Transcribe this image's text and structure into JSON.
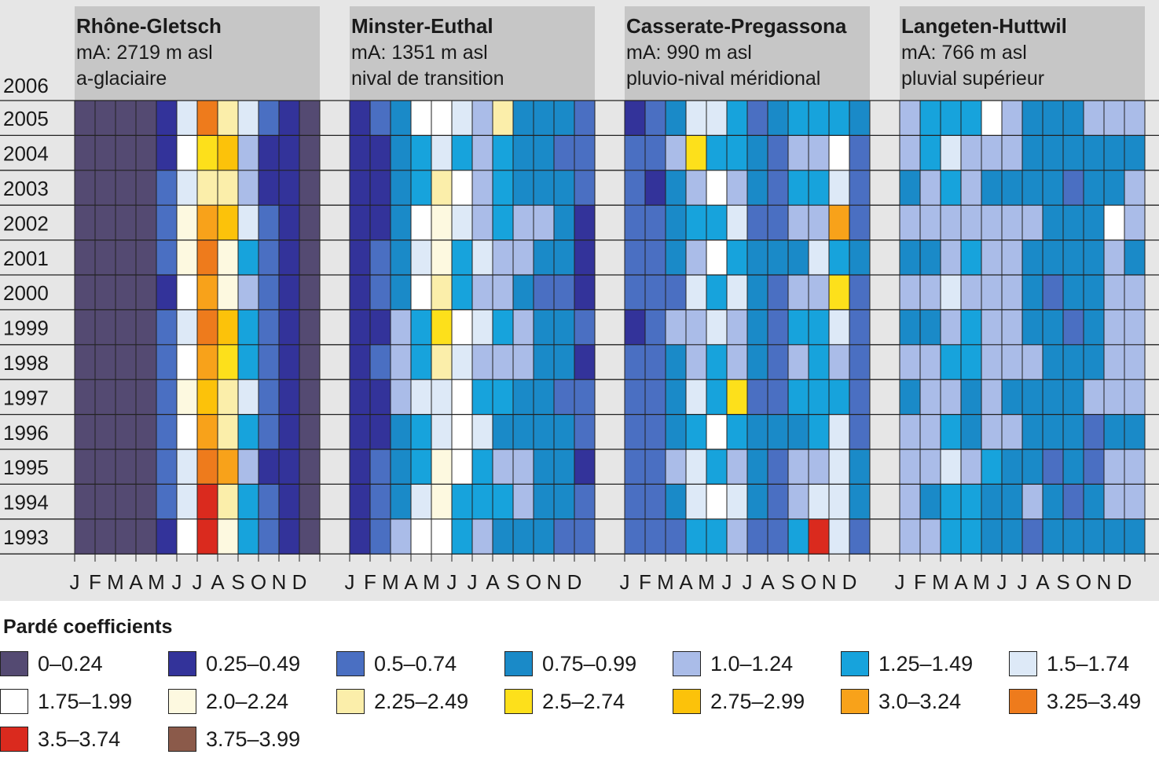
{
  "chart_data": {
    "type": "heatmap",
    "legend_title": "Pardé coefficients",
    "years": [
      "2006",
      "2005",
      "2004",
      "2003",
      "2002",
      "2001",
      "2000",
      "1999",
      "1998",
      "1997",
      "1996",
      "1995",
      "1994",
      "1993"
    ],
    "months": [
      "J",
      "F",
      "M",
      "A",
      "M",
      "J",
      "J",
      "A",
      "S",
      "O",
      "N",
      "D"
    ],
    "legend": [
      {
        "label": "0–0.24",
        "color": "#544a72"
      },
      {
        "label": "0.25–0.49",
        "color": "#33339a"
      },
      {
        "label": "0.5–0.74",
        "color": "#4a6fc2"
      },
      {
        "label": "0.75–0.99",
        "color": "#1a8ac8"
      },
      {
        "label": "1.0–1.24",
        "color": "#aabce8"
      },
      {
        "label": "1.25–1.49",
        "color": "#17a3dc"
      },
      {
        "label": "1.5–1.74",
        "color": "#dde9f7"
      },
      {
        "label": "1.75–1.99",
        "color": "#ffffff"
      },
      {
        "label": "2.0–2.24",
        "color": "#fdf9e0"
      },
      {
        "label": "2.25–2.49",
        "color": "#fbeeaa"
      },
      {
        "label": "2.5–2.74",
        "color": "#fde01b"
      },
      {
        "label": "2.75–2.99",
        "color": "#fcc20a"
      },
      {
        "label": "3.0–3.24",
        "color": "#f8a21a"
      },
      {
        "label": "3.25–3.49",
        "color": "#ee7b1c"
      },
      {
        "label": "3.5–3.74",
        "color": "#da2a1e"
      },
      {
        "label": "3.75–3.99",
        "color": "#8b5a4a"
      }
    ],
    "stations": [
      {
        "name": "Rhône-Gletsch",
        "altitude": "mA: 2719 m asl",
        "regime": "a-glaciaire",
        "monthly_coefficients": [
          0.1,
          0.1,
          0.1,
          0.2,
          0.5,
          1.8,
          2.9,
          2.6,
          1.3,
          0.5,
          0.3,
          0.2
        ],
        "peak_events": [
          {
            "year": "1994",
            "month": "J",
            "value": 3.6
          },
          {
            "year": "1995",
            "month": "J",
            "value": 3.4
          },
          {
            "year": "2005",
            "month": "J",
            "value": 3.3
          },
          {
            "year": "2000",
            "month": "J",
            "value": 3.1
          }
        ]
      },
      {
        "name": "Minster-Euthal",
        "altitude": "mA: 1351 m asl",
        "regime": "nival de transition",
        "monthly_coefficients": [
          0.4,
          0.5,
          0.9,
          1.6,
          1.9,
          1.5,
          1.3,
          1.2,
          1.0,
          0.9,
          0.8,
          0.5
        ],
        "peak_events": [
          {
            "year": "1999",
            "month": "M",
            "value": 2.7
          },
          {
            "year": "1994",
            "month": "M",
            "value": 2.2
          },
          {
            "year": "2005",
            "month": "A",
            "value": 2.3
          }
        ]
      },
      {
        "name": "Casserate-Pregassona",
        "altitude": "mA: 990 m asl",
        "regime": "pluvio-nival méridional",
        "monthly_coefficients": [
          0.6,
          0.6,
          0.9,
          1.4,
          1.6,
          1.3,
          0.8,
          0.7,
          1.1,
          1.3,
          1.5,
          0.7
        ],
        "peak_events": [
          {
            "year": "2002",
            "month": "N",
            "value": 3.2
          },
          {
            "year": "1993",
            "month": "O",
            "value": 3.5
          },
          {
            "year": "2004",
            "month": "A",
            "value": 2.6
          },
          {
            "year": "2000",
            "month": "N",
            "value": 2.6
          },
          {
            "year": "1997",
            "month": "J",
            "value": 2.5
          }
        ]
      },
      {
        "name": "Langeten-Huttwil",
        "altitude": "mA: 766 m asl",
        "regime": "pluvial supérieur",
        "monthly_coefficients": [
          1.0,
          1.1,
          1.3,
          1.2,
          1.1,
          1.0,
          0.9,
          0.8,
          0.8,
          0.9,
          1.0,
          1.0
        ],
        "peak_events": [
          {
            "year": "2005",
            "month": "M",
            "value": 1.8
          },
          {
            "year": "2002",
            "month": "N",
            "value": 1.8
          }
        ]
      }
    ]
  }
}
